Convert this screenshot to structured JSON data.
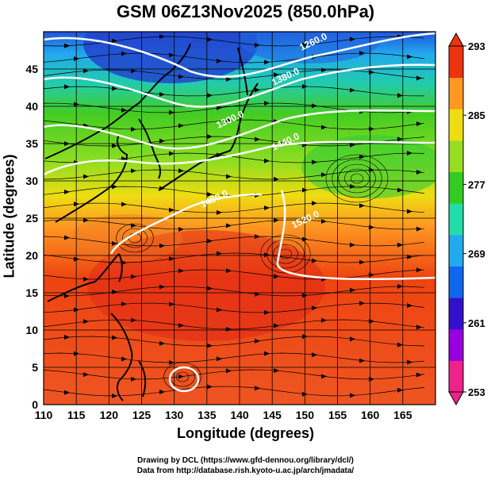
{
  "title": "GSM 06Z13Nov2025 (850.0hPa)",
  "x_axis": {
    "label": "Longitude (degrees)",
    "ticks": [
      "110",
      "115",
      "120",
      "125",
      "130",
      "135",
      "140",
      "145",
      "150",
      "155",
      "160",
      "165"
    ],
    "range": [
      110,
      170
    ]
  },
  "y_axis": {
    "label": "Latitude  (degrees)",
    "ticks": [
      "0",
      "5",
      "10",
      "15",
      "20",
      "25",
      "30",
      "35",
      "40",
      "45"
    ],
    "range": [
      0,
      50
    ]
  },
  "colorbar": {
    "ticks": [
      "293",
      "285",
      "277",
      "269",
      "261",
      "253"
    ],
    "range": [
      253,
      293
    ],
    "colors": [
      "#ee2288",
      "#9900dd",
      "#3311cc",
      "#1166ee",
      "#22aaee",
      "#22ddaa",
      "#33cc22",
      "#99dd22",
      "#eedd11",
      "#ff9922",
      "#ee3311"
    ]
  },
  "contours": [
    {
      "label": "1260.0"
    },
    {
      "label": "1380.0"
    },
    {
      "label": "1300.0"
    },
    {
      "label": "1440.0"
    },
    {
      "label": "1480.0"
    },
    {
      "label": "1520.0"
    }
  ],
  "credits": {
    "line1": "Drawing by DCL (https://www.gfd-dennou.org/library/dcl/)",
    "line2": "Data from http://database.rish.kyoto-u.ac.jp/arch/jmadata/"
  }
}
